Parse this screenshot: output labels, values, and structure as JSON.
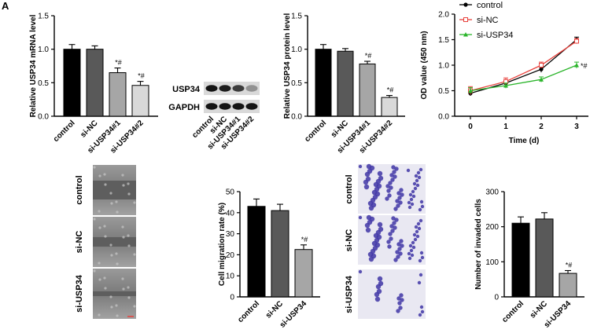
{
  "panel_label": "A",
  "chart_data": [
    {
      "id": "mrna",
      "type": "bar",
      "ylabel": "Relative USP34 mRNA  level",
      "categories": [
        "control",
        "si-NC",
        "si-USP34#1",
        "si-USP34#2"
      ],
      "values": [
        1.0,
        1.0,
        0.65,
        0.46
      ],
      "errors": [
        0.07,
        0.05,
        0.07,
        0.06
      ],
      "colors": [
        "#000000",
        "#595959",
        "#a6a6a6",
        "#d9d9d9"
      ],
      "annotations": [
        "",
        "",
        "*#",
        "*#"
      ],
      "ylim": [
        0,
        1.5
      ],
      "yticks": [
        "0.0",
        "0.5",
        "1.0",
        "1.5"
      ]
    },
    {
      "id": "protein",
      "type": "bar",
      "ylabel": "Relative USP34 protein  level",
      "categories": [
        "control",
        "si-NC",
        "si-USP34#1",
        "si-USP34#2"
      ],
      "values": [
        1.0,
        0.97,
        0.78,
        0.28
      ],
      "errors": [
        0.07,
        0.04,
        0.04,
        0.03
      ],
      "colors": [
        "#000000",
        "#595959",
        "#a6a6a6",
        "#d9d9d9"
      ],
      "annotations": [
        "",
        "",
        "*#",
        "*#"
      ],
      "ylim": [
        0,
        1.5
      ],
      "yticks": [
        "0.0",
        "0.5",
        "1.0",
        "1.5"
      ]
    },
    {
      "id": "od",
      "type": "line",
      "xlabel": "Time (d)",
      "ylabel": "OD value (450 nm)",
      "x": [
        0,
        1,
        2,
        3
      ],
      "xticks": [
        "0",
        "1",
        "2",
        "3"
      ],
      "ylim": [
        0,
        2.0
      ],
      "yticks": [
        "0.0",
        "0.5",
        "1.0",
        "1.5",
        "2.0"
      ],
      "series": [
        {
          "name": "control",
          "color": "#000000",
          "marker": "circle",
          "values": [
            0.45,
            0.65,
            0.92,
            1.5
          ],
          "errors": [
            0.05,
            0.05,
            0.06,
            0.05
          ]
        },
        {
          "name": "si-NC",
          "color": "#e8413c",
          "marker": "square",
          "values": [
            0.5,
            0.68,
            1.0,
            1.47
          ],
          "errors": [
            0.08,
            0.07,
            0.06,
            0.05
          ]
        },
        {
          "name": "si-USP34",
          "color": "#2bb52b",
          "marker": "triangle",
          "values": [
            0.5,
            0.6,
            0.72,
            1.0
          ],
          "errors": [
            0.06,
            0.05,
            0.05,
            0.06
          ]
        }
      ],
      "annotation": "*#"
    },
    {
      "id": "migration",
      "type": "bar",
      "ylabel": "Cell migration rate (%)",
      "categories": [
        "control",
        "si-NC",
        "si-USP34"
      ],
      "values": [
        43,
        41,
        22.5
      ],
      "errors": [
        3.5,
        3,
        2.2
      ],
      "colors": [
        "#000000",
        "#595959",
        "#a6a6a6"
      ],
      "annotations": [
        "",
        "",
        "*#"
      ],
      "ylim": [
        0,
        50
      ],
      "yticks": [
        "0",
        "10",
        "20",
        "30",
        "40",
        "50"
      ]
    },
    {
      "id": "invasion",
      "type": "bar",
      "ylabel": "Number of invaded cells",
      "categories": [
        "control",
        "si-NC",
        "si-USP34"
      ],
      "values": [
        210,
        222,
        67
      ],
      "errors": [
        18,
        18,
        8
      ],
      "colors": [
        "#000000",
        "#595959",
        "#a6a6a6"
      ],
      "annotations": [
        "",
        "",
        "*#"
      ],
      "ylim": [
        0,
        300
      ],
      "yticks": [
        "0",
        "100",
        "200",
        "300"
      ]
    }
  ],
  "western_blot": {
    "bands": [
      "USP34",
      "GAPDH"
    ],
    "lanes": [
      "control",
      "si-NC",
      "si-USP34#1",
      "si-USP34#2"
    ],
    "intensities": {
      "USP34": [
        1.0,
        0.95,
        0.78,
        0.3
      ],
      "GAPDH": [
        1.0,
        1.0,
        1.0,
        1.0
      ]
    }
  },
  "wound_images": {
    "labels": [
      "control",
      "si-NC",
      "si-USP34"
    ]
  },
  "transwell_images": {
    "labels": [
      "control",
      "si-NC",
      "si-USP34"
    ]
  }
}
